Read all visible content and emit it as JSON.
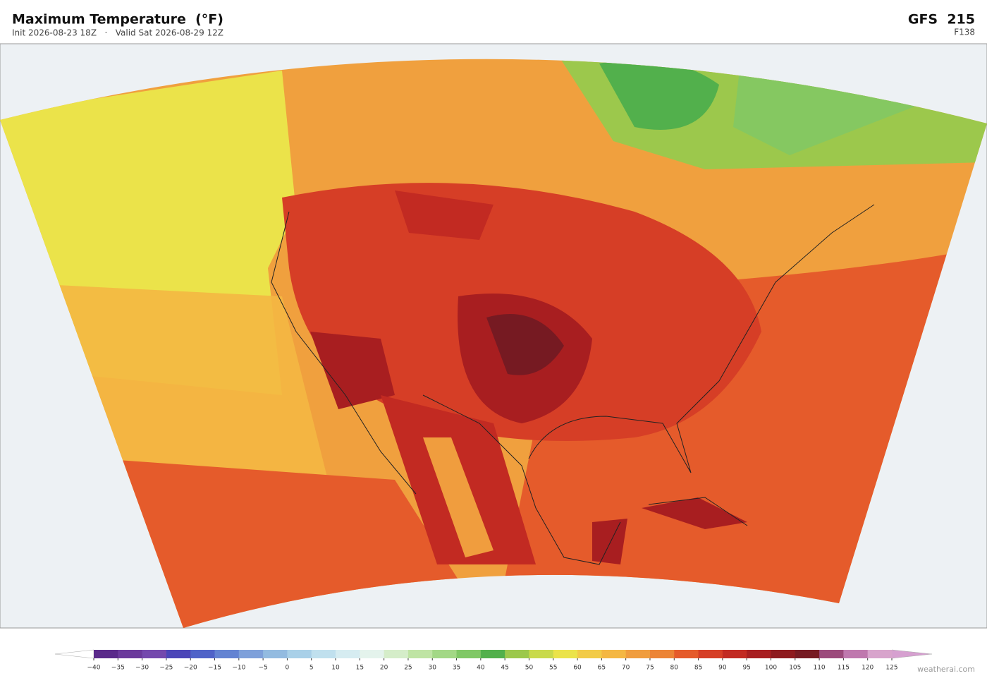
{
  "header": {
    "title": "Maximum Temperature  (°F)",
    "subtitle": "Init 2026-08-23 18Z   ·   Valid Sat 2026-08-29 12Z",
    "model": "GFS  215",
    "forecast_hour": "F138"
  },
  "colorbar": {
    "ticks": [
      {
        "value": -40,
        "label": "−40"
      },
      {
        "value": -35,
        "label": "−35"
      },
      {
        "value": -30,
        "label": "−30"
      },
      {
        "value": -25,
        "label": "−25"
      },
      {
        "value": -20,
        "label": "−20"
      },
      {
        "value": -15,
        "label": "−15"
      },
      {
        "value": -10,
        "label": "−10"
      },
      {
        "value": -5,
        "label": "−5"
      },
      0,
      5,
      10,
      15,
      20,
      25,
      30,
      35,
      40,
      45,
      50,
      55,
      60,
      65,
      70,
      75,
      80,
      85,
      90,
      95,
      100,
      105,
      110,
      115,
      120,
      125
    ],
    "colors": [
      "#5a2a8a",
      "#6b3a9c",
      "#7449ad",
      "#4b46b8",
      "#4f63c8",
      "#6383d2",
      "#7ea0da",
      "#93bbe0",
      "#a9d0e8",
      "#c0e0ee",
      "#d6ecf1",
      "#e4f3ec",
      "#d5edc9",
      "#bfe4a4",
      "#a3d886",
      "#80c866",
      "#52b04c",
      "#9cc84c",
      "#c9da4c",
      "#ebe34a",
      "#f2cb48",
      "#f4b743",
      "#f09d3e",
      "#ec8436",
      "#e55b2b",
      "#d63e26",
      "#c22a22",
      "#a81e20",
      "#8e1a1e",
      "#761a22",
      "#9c4a7c",
      "#bf78ae",
      "#d8a4cc"
    ],
    "under_color": "#ffffff",
    "over_color": "#d6a0d0"
  },
  "footer": {
    "credit": "weatherai.com"
  }
}
